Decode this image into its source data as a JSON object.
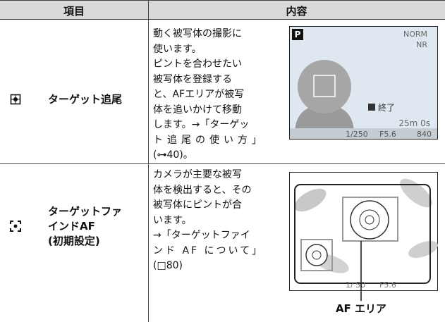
{
  "table": {
    "header": [
      "項目",
      "内容"
    ],
    "rows": [
      {
        "label": [
          "ターゲット追尾"
        ],
        "description": [
          "動く被写体の撮影に",
          "使います。",
          "ピントを合わせたい",
          "被写体を登録する",
          "と、AFエリアが被写",
          "体を追いかけて移動",
          "します。→「ターゲッ",
          "ト追尾の使い方」",
          "(⊶40)。"
        ],
        "screen": {
          "mode": "P",
          "quality": "NORM",
          "nr": "NR",
          "end": "終了",
          "remaining": "25m 0s",
          "shutter": "1/250",
          "aperture": "F5.6",
          "shots": "840"
        }
      },
      {
        "label": [
          "ターゲットファ",
          "インドAF",
          "(初期設定)"
        ],
        "description": [
          "カメラが主要な被写",
          "体を検出すると、その",
          "被写体にピントが合",
          "います。",
          "→「ターゲットファイ",
          "ンド AF について」",
          "(□80)"
        ],
        "screen": {
          "shutter": "1/ 50",
          "aperture": "F5.6",
          "caption": "AF エリア"
        }
      }
    ]
  }
}
